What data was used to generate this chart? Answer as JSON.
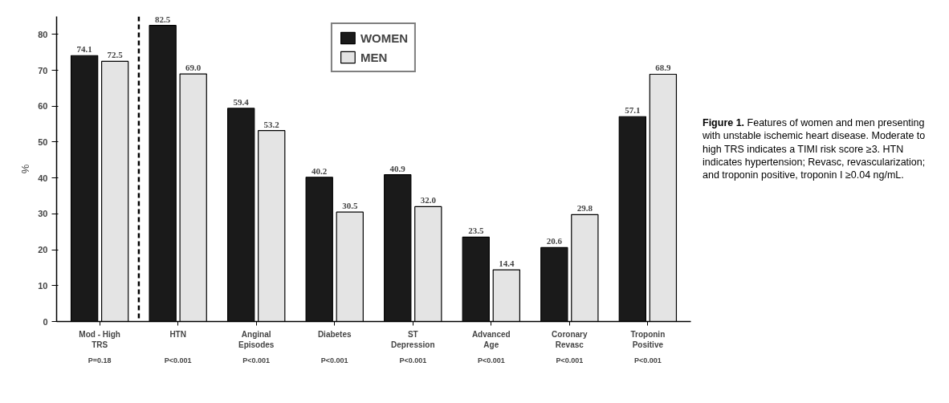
{
  "chart_data": {
    "type": "bar",
    "ylabel": "%",
    "categories": [
      "Mod - High TRS",
      "HTN",
      "Anginal Episodes",
      "Diabetes",
      "ST Depression",
      "Advanced Age",
      "Coronary Revasc",
      "Troponin Positive"
    ],
    "series": [
      {
        "name": "WOMEN",
        "color": "#1a1a1a",
        "values": [
          74.1,
          82.5,
          59.4,
          40.2,
          40.9,
          23.5,
          20.6,
          57.1
        ],
        "value_labels": [
          "74.1",
          "82.5",
          "59.4",
          "40.2",
          "40.9",
          "23.5",
          "20.6",
          "57.1"
        ]
      },
      {
        "name": "MEN",
        "color": "#e4e4e4",
        "values": [
          72.5,
          69.0,
          53.2,
          30.5,
          32.0,
          14.4,
          29.8,
          68.9
        ],
        "value_labels": [
          "72.5",
          "69.0",
          "53.2",
          "30.5",
          "32.0",
          "14.4",
          "29.8",
          "68.9"
        ]
      }
    ],
    "ylim": [
      0,
      85
    ],
    "yticks": [
      0,
      10,
      20,
      30,
      40,
      50,
      60,
      70,
      80
    ],
    "legend": "top",
    "annotations": [
      "P=0.18",
      "P<0.001",
      "P<0.001",
      "P<0.001",
      "P<0.001",
      "P<0.001",
      "P<0.001",
      "P<0.001",
      "Figure 1. Features of women and men presenting with unstable ischemic heart disease. Moderate to high TRS indicates a TIMI risk score ≥3. HTN indicates hypertension; Revasc, revascularization; and troponin positive, troponin I ≥0.04 ng/mL."
    ]
  }
}
